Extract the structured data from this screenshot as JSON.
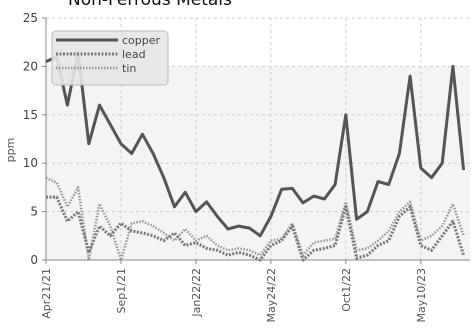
{
  "chart_data": {
    "type": "line",
    "title": "Non-Ferrous Metals",
    "ylabel": "ppm",
    "xlabel": "",
    "ylim": [
      0,
      25
    ],
    "yticks": [
      0,
      5,
      10,
      15,
      20,
      25
    ],
    "xtick_labels": [
      "Apr21/21",
      "Sep1/21",
      "Jan22/22",
      "May24/22",
      "Oct1/22",
      "May10/23",
      "Oct30/23",
      "Mar20/24"
    ],
    "xtick_index": [
      0,
      7,
      14,
      21,
      28,
      35,
      42,
      49
    ],
    "grid": true,
    "legend_position": "top-left",
    "series": [
      {
        "name": "copper",
        "color": "#555555",
        "style": "solid",
        "values": [
          20.5,
          21.0,
          16.0,
          21.5,
          12.0,
          16.0,
          14.0,
          12.0,
          11.0,
          13.0,
          11.0,
          8.5,
          5.5,
          7.0,
          5.0,
          6.0,
          4.5,
          3.2,
          3.5,
          3.3,
          2.5,
          4.5,
          7.3,
          7.4,
          5.9,
          6.6,
          6.3,
          7.8,
          15.0,
          4.2,
          5.0,
          8.1,
          7.8,
          11.0,
          19.0,
          9.5,
          8.5,
          10.0,
          20.0,
          9.3
        ]
      },
      {
        "name": "lead",
        "color": "#777777",
        "style": "dashed",
        "values": [
          6.5,
          6.5,
          4.0,
          5.0,
          0.8,
          3.5,
          2.5,
          3.8,
          3.0,
          2.8,
          2.5,
          2.0,
          2.8,
          1.5,
          1.8,
          1.2,
          1.0,
          0.5,
          0.8,
          0.5,
          0.0,
          1.5,
          2.0,
          3.5,
          0.0,
          1.0,
          1.2,
          1.5,
          5.5,
          0.2,
          0.5,
          1.5,
          2.0,
          4.5,
          5.5,
          1.5,
          1.0,
          2.5,
          4.0,
          0.5
        ]
      },
      {
        "name": "tin",
        "color": "#999999",
        "style": "dotted",
        "values": [
          8.5,
          8.0,
          5.5,
          7.5,
          0.0,
          5.8,
          3.5,
          0.0,
          3.8,
          4.0,
          3.5,
          2.8,
          2.0,
          3.2,
          2.0,
          2.5,
          1.5,
          1.0,
          1.2,
          1.0,
          0.5,
          2.0,
          2.2,
          3.8,
          0.5,
          1.8,
          2.0,
          2.2,
          6.0,
          1.0,
          1.2,
          2.0,
          3.0,
          5.0,
          6.0,
          2.0,
          2.5,
          3.5,
          5.8,
          2.5
        ]
      }
    ]
  }
}
